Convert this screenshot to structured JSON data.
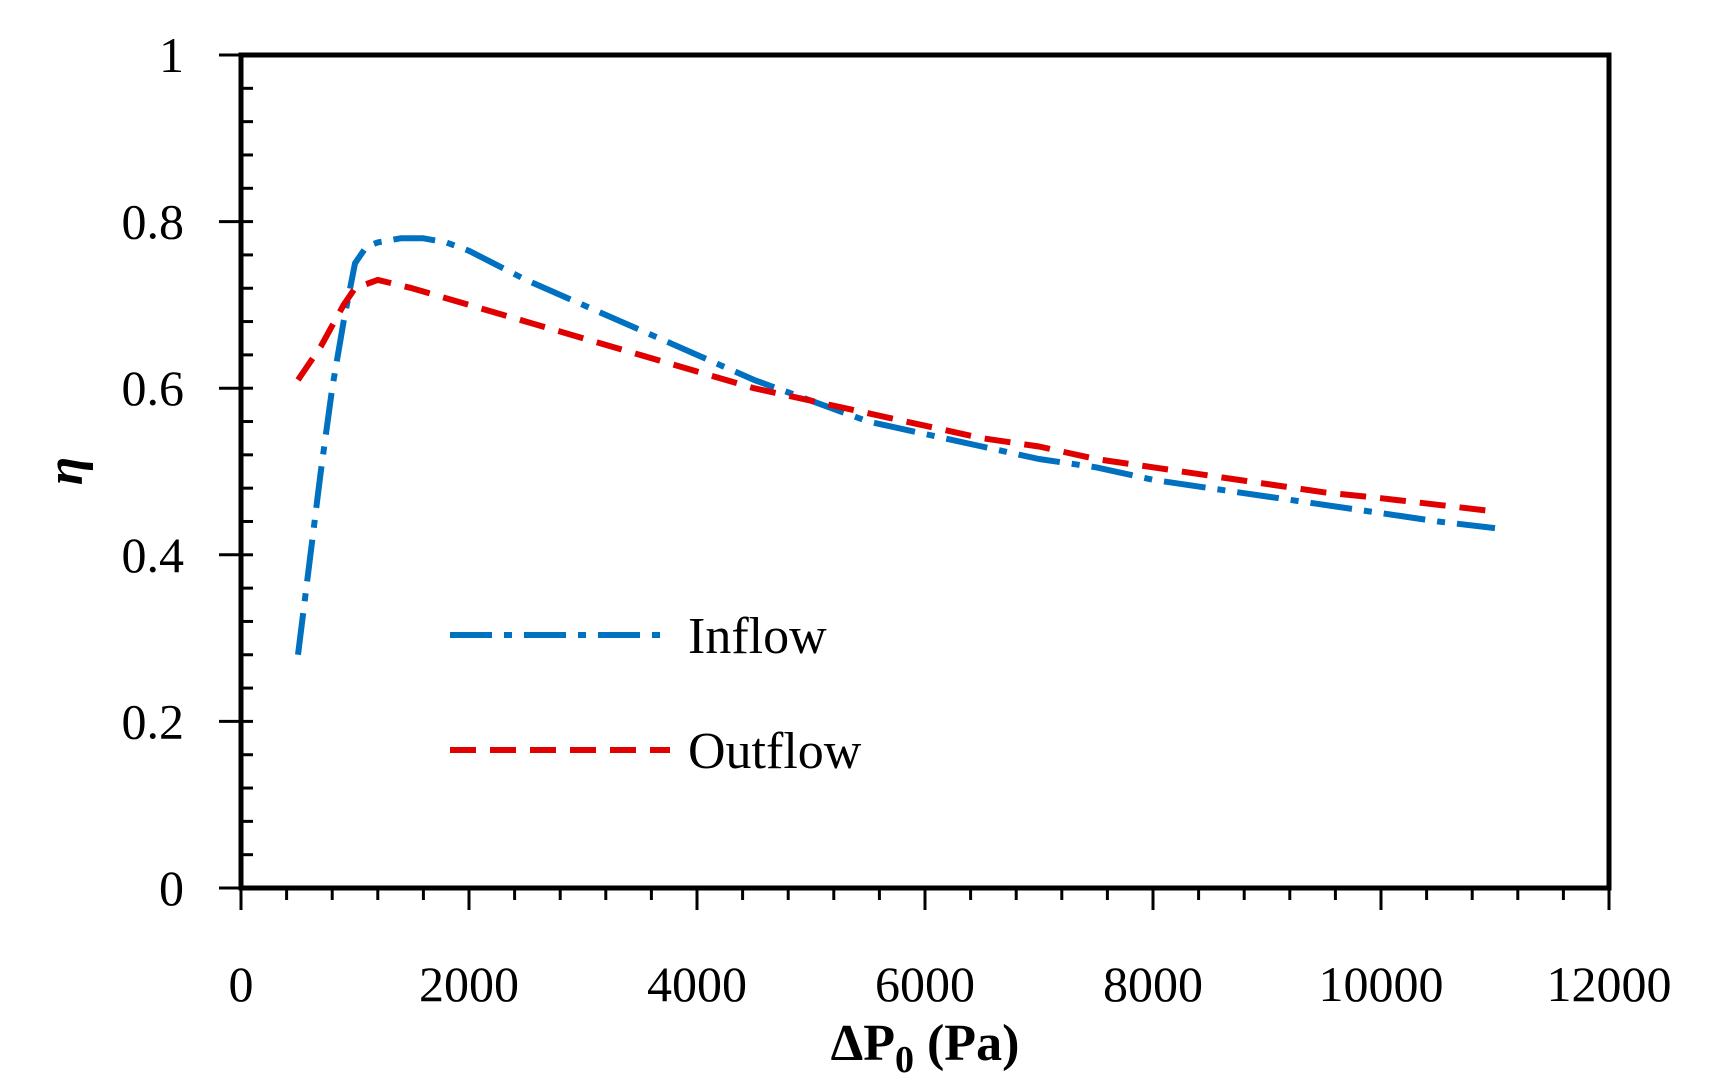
{
  "chart_data": {
    "type": "line",
    "xlabel": {
      "main": "ΔP",
      "subscript": "0",
      "unit": " (Pa)"
    },
    "ylabel": "η",
    "xlim": [
      0,
      12000
    ],
    "ylim": [
      0,
      1
    ],
    "xticks": [
      0,
      2000,
      4000,
      6000,
      8000,
      10000,
      12000
    ],
    "yticks": [
      0,
      0.2,
      0.4,
      0.6,
      0.8,
      1
    ],
    "xtick_labels": [
      "0",
      "2000",
      "4000",
      "6000",
      "8000",
      "10000",
      "12000"
    ],
    "ytick_labels": [
      "0",
      "0.2",
      "0.4",
      "0.6",
      "0.8",
      "1"
    ],
    "x_minor_step": 400,
    "y_minor_step": 0.04,
    "legend_position": "center-left",
    "grid": false,
    "series": [
      {
        "name": "Inflow",
        "color": "#0070C0",
        "style": "dash-dot",
        "x": [
          500,
          600,
          700,
          800,
          900,
          1000,
          1100,
          1200,
          1400,
          1600,
          1800,
          2000,
          2500,
          3000,
          3500,
          4000,
          4500,
          5000,
          5500,
          6000,
          6500,
          7000,
          7500,
          8000,
          8500,
          9000,
          9500,
          10000,
          10500,
          11000
        ],
        "y": [
          0.28,
          0.39,
          0.5,
          0.6,
          0.68,
          0.75,
          0.77,
          0.775,
          0.78,
          0.78,
          0.775,
          0.765,
          0.73,
          0.7,
          0.67,
          0.64,
          0.61,
          0.585,
          0.56,
          0.545,
          0.53,
          0.515,
          0.505,
          0.49,
          0.48,
          0.47,
          0.46,
          0.45,
          0.44,
          0.432
        ]
      },
      {
        "name": "Outflow",
        "color": "#E00000",
        "style": "dashed",
        "x": [
          500,
          700,
          900,
          1000,
          1200,
          1500,
          2000,
          2500,
          3000,
          3500,
          4000,
          4500,
          5000,
          5500,
          6000,
          6500,
          7000,
          7500,
          8000,
          8500,
          9000,
          9500,
          10000,
          10500,
          11000
        ],
        "y": [
          0.61,
          0.65,
          0.7,
          0.72,
          0.73,
          0.72,
          0.7,
          0.68,
          0.66,
          0.64,
          0.62,
          0.6,
          0.585,
          0.57,
          0.555,
          0.54,
          0.53,
          0.515,
          0.505,
          0.495,
          0.485,
          0.475,
          0.468,
          0.46,
          0.452
        ]
      }
    ]
  }
}
